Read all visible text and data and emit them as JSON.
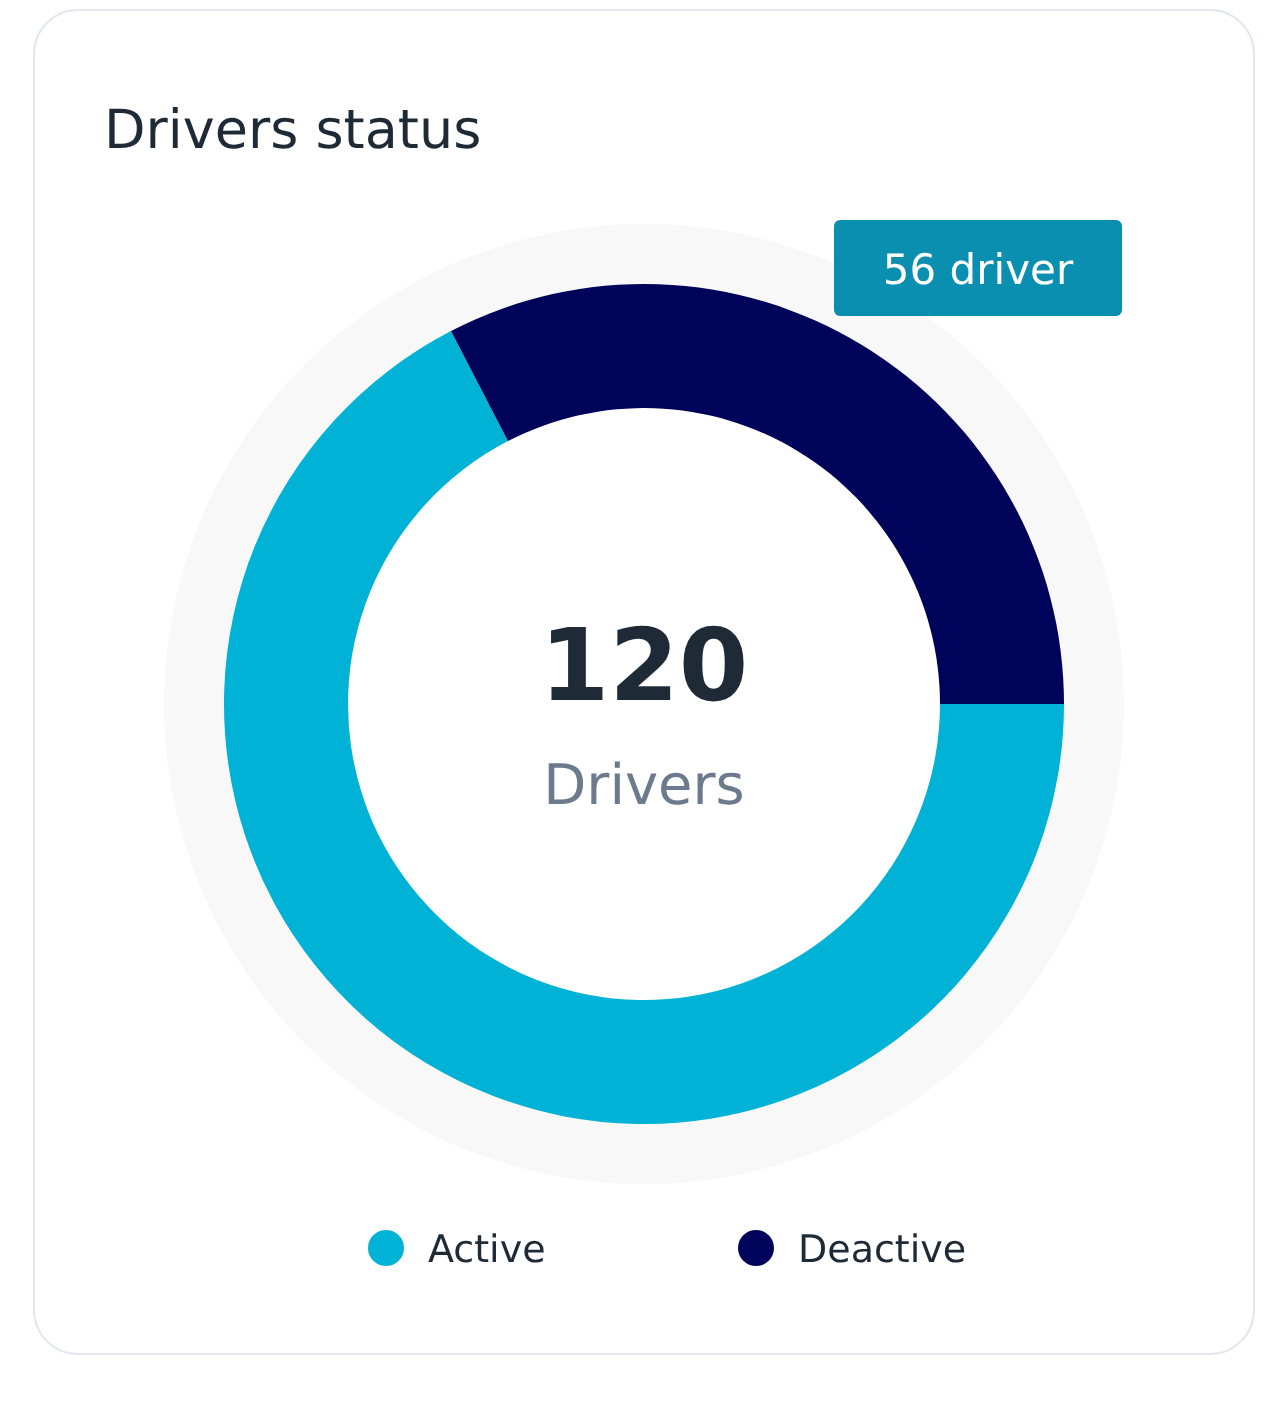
{
  "chart_data": {
    "type": "donut",
    "title": "Drivers status",
    "categories": [
      "Active",
      "Deactive"
    ],
    "values": [
      67.4,
      32.6
    ],
    "colors": [
      "#00b2d6",
      "#00035a"
    ],
    "legend": "bottom",
    "annotations": [
      "56 driver",
      "120",
      "Drivers"
    ]
  }
}
